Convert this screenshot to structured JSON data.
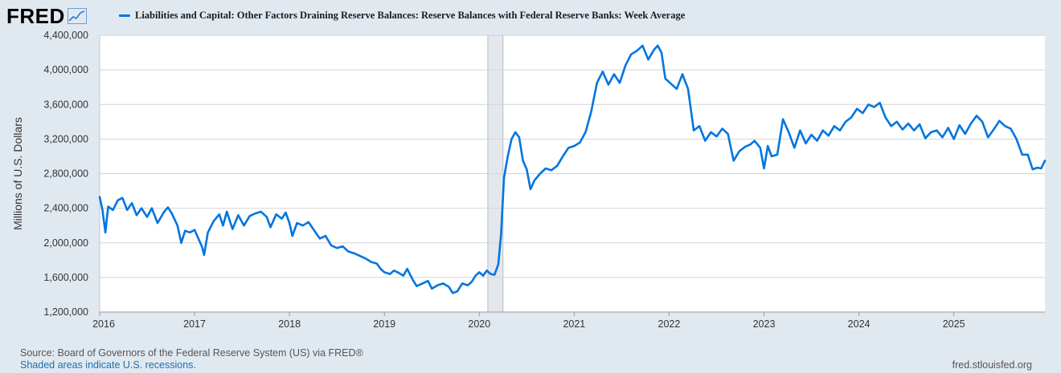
{
  "header": {
    "logo_text": "FRED",
    "logo_icon": "trend-line-icon"
  },
  "colors": {
    "series": "#0075e0",
    "background": "#e1e9f0",
    "plot_background": "#ffffff",
    "recession_shade": "#e4e8ec",
    "gridline": "#d4d4d4"
  },
  "footer": {
    "source": "Source: Board of Governors of the Federal Reserve System (US) via FRED®",
    "note": "Shaded areas indicate U.S. recessions.",
    "url": "fred.stlouisfed.org"
  },
  "chart_data": {
    "type": "line",
    "title": "",
    "xlabel": "",
    "ylabel": "Millions of U.S. Dollars",
    "ylim": [
      1200000,
      4400000
    ],
    "xlim": [
      2016.0,
      2025.96
    ],
    "y_ticks": [
      1200000,
      1600000,
      2000000,
      2400000,
      2800000,
      3200000,
      3600000,
      4000000,
      4400000
    ],
    "y_tick_labels": [
      "1,200,000",
      "1,600,000",
      "2,000,000",
      "2,400,000",
      "2,800,000",
      "3,200,000",
      "3,600,000",
      "4,000,000",
      "4,400,000"
    ],
    "x_ticks": [
      2016,
      2017,
      2018,
      2019,
      2020,
      2021,
      2022,
      2023,
      2024,
      2025
    ],
    "x_tick_labels": [
      "2016",
      "2017",
      "2018",
      "2019",
      "2020",
      "2021",
      "2022",
      "2023",
      "2024",
      "2025"
    ],
    "grid": "horizontal",
    "legend_position": "top-left",
    "recessions": [
      {
        "start": 2020.09,
        "end": 2020.25
      }
    ],
    "series": [
      {
        "name": "Liabilities and Capital: Other Factors Draining Reserve Balances: Reserve Balances with Federal Reserve Banks: Week Average",
        "points": [
          [
            2016.0,
            2530000
          ],
          [
            2016.03,
            2380000
          ],
          [
            2016.06,
            2120000
          ],
          [
            2016.09,
            2420000
          ],
          [
            2016.14,
            2380000
          ],
          [
            2016.19,
            2490000
          ],
          [
            2016.24,
            2520000
          ],
          [
            2016.29,
            2380000
          ],
          [
            2016.34,
            2460000
          ],
          [
            2016.39,
            2320000
          ],
          [
            2016.44,
            2400000
          ],
          [
            2016.5,
            2300000
          ],
          [
            2016.55,
            2400000
          ],
          [
            2016.61,
            2230000
          ],
          [
            2016.68,
            2360000
          ],
          [
            2016.72,
            2410000
          ],
          [
            2016.76,
            2340000
          ],
          [
            2016.82,
            2200000
          ],
          [
            2016.86,
            2000000
          ],
          [
            2016.9,
            2140000
          ],
          [
            2016.95,
            2120000
          ],
          [
            2017.0,
            2150000
          ],
          [
            2017.04,
            2050000
          ],
          [
            2017.08,
            1950000
          ],
          [
            2017.1,
            1860000
          ],
          [
            2017.14,
            2120000
          ],
          [
            2017.2,
            2250000
          ],
          [
            2017.26,
            2330000
          ],
          [
            2017.3,
            2200000
          ],
          [
            2017.34,
            2360000
          ],
          [
            2017.4,
            2160000
          ],
          [
            2017.46,
            2320000
          ],
          [
            2017.52,
            2200000
          ],
          [
            2017.58,
            2310000
          ],
          [
            2017.64,
            2340000
          ],
          [
            2017.7,
            2360000
          ],
          [
            2017.76,
            2300000
          ],
          [
            2017.8,
            2180000
          ],
          [
            2017.86,
            2330000
          ],
          [
            2017.92,
            2280000
          ],
          [
            2017.96,
            2350000
          ],
          [
            2018.0,
            2230000
          ],
          [
            2018.03,
            2080000
          ],
          [
            2018.08,
            2230000
          ],
          [
            2018.14,
            2200000
          ],
          [
            2018.2,
            2240000
          ],
          [
            2018.25,
            2160000
          ],
          [
            2018.32,
            2050000
          ],
          [
            2018.38,
            2080000
          ],
          [
            2018.44,
            1970000
          ],
          [
            2018.5,
            1940000
          ],
          [
            2018.56,
            1960000
          ],
          [
            2018.62,
            1900000
          ],
          [
            2018.68,
            1880000
          ],
          [
            2018.74,
            1850000
          ],
          [
            2018.8,
            1820000
          ],
          [
            2018.86,
            1780000
          ],
          [
            2018.92,
            1760000
          ],
          [
            2018.96,
            1700000
          ],
          [
            2019.0,
            1660000
          ],
          [
            2019.06,
            1640000
          ],
          [
            2019.1,
            1680000
          ],
          [
            2019.14,
            1660000
          ],
          [
            2019.2,
            1620000
          ],
          [
            2019.24,
            1700000
          ],
          [
            2019.3,
            1570000
          ],
          [
            2019.34,
            1500000
          ],
          [
            2019.4,
            1530000
          ],
          [
            2019.46,
            1560000
          ],
          [
            2019.5,
            1470000
          ],
          [
            2019.56,
            1510000
          ],
          [
            2019.62,
            1530000
          ],
          [
            2019.68,
            1490000
          ],
          [
            2019.72,
            1420000
          ],
          [
            2019.77,
            1440000
          ],
          [
            2019.82,
            1530000
          ],
          [
            2019.88,
            1510000
          ],
          [
            2019.92,
            1550000
          ],
          [
            2019.96,
            1620000
          ],
          [
            2020.0,
            1660000
          ],
          [
            2020.04,
            1620000
          ],
          [
            2020.08,
            1680000
          ],
          [
            2020.12,
            1640000
          ],
          [
            2020.16,
            1630000
          ],
          [
            2020.2,
            1750000
          ],
          [
            2020.23,
            2100000
          ],
          [
            2020.26,
            2750000
          ],
          [
            2020.3,
            3000000
          ],
          [
            2020.34,
            3200000
          ],
          [
            2020.38,
            3280000
          ],
          [
            2020.42,
            3220000
          ],
          [
            2020.46,
            2950000
          ],
          [
            2020.5,
            2850000
          ],
          [
            2020.54,
            2620000
          ],
          [
            2020.58,
            2720000
          ],
          [
            2020.64,
            2800000
          ],
          [
            2020.7,
            2860000
          ],
          [
            2020.76,
            2840000
          ],
          [
            2020.82,
            2890000
          ],
          [
            2020.88,
            3000000
          ],
          [
            2020.94,
            3100000
          ],
          [
            2021.0,
            3120000
          ],
          [
            2021.06,
            3160000
          ],
          [
            2021.12,
            3280000
          ],
          [
            2021.18,
            3520000
          ],
          [
            2021.24,
            3850000
          ],
          [
            2021.3,
            3980000
          ],
          [
            2021.36,
            3830000
          ],
          [
            2021.42,
            3950000
          ],
          [
            2021.48,
            3850000
          ],
          [
            2021.54,
            4050000
          ],
          [
            2021.6,
            4180000
          ],
          [
            2021.66,
            4220000
          ],
          [
            2021.72,
            4280000
          ],
          [
            2021.78,
            4120000
          ],
          [
            2021.84,
            4230000
          ],
          [
            2021.88,
            4280000
          ],
          [
            2021.92,
            4200000
          ],
          [
            2021.96,
            3900000
          ],
          [
            2022.02,
            3840000
          ],
          [
            2022.08,
            3780000
          ],
          [
            2022.14,
            3950000
          ],
          [
            2022.2,
            3780000
          ],
          [
            2022.26,
            3300000
          ],
          [
            2022.32,
            3350000
          ],
          [
            2022.38,
            3180000
          ],
          [
            2022.44,
            3280000
          ],
          [
            2022.5,
            3230000
          ],
          [
            2022.56,
            3320000
          ],
          [
            2022.62,
            3260000
          ],
          [
            2022.68,
            2950000
          ],
          [
            2022.74,
            3060000
          ],
          [
            2022.8,
            3110000
          ],
          [
            2022.86,
            3140000
          ],
          [
            2022.9,
            3180000
          ],
          [
            2022.96,
            3100000
          ],
          [
            2023.0,
            2860000
          ],
          [
            2023.04,
            3120000
          ],
          [
            2023.08,
            3000000
          ],
          [
            2023.14,
            3020000
          ],
          [
            2023.2,
            3430000
          ],
          [
            2023.26,
            3280000
          ],
          [
            2023.32,
            3100000
          ],
          [
            2023.38,
            3300000
          ],
          [
            2023.44,
            3150000
          ],
          [
            2023.5,
            3250000
          ],
          [
            2023.56,
            3180000
          ],
          [
            2023.62,
            3300000
          ],
          [
            2023.68,
            3240000
          ],
          [
            2023.74,
            3350000
          ],
          [
            2023.8,
            3300000
          ],
          [
            2023.86,
            3400000
          ],
          [
            2023.92,
            3450000
          ],
          [
            2023.98,
            3550000
          ],
          [
            2024.04,
            3500000
          ],
          [
            2024.1,
            3600000
          ],
          [
            2024.16,
            3570000
          ],
          [
            2024.22,
            3620000
          ],
          [
            2024.28,
            3450000
          ],
          [
            2024.34,
            3350000
          ],
          [
            2024.4,
            3400000
          ],
          [
            2024.46,
            3310000
          ],
          [
            2024.52,
            3380000
          ],
          [
            2024.58,
            3300000
          ],
          [
            2024.64,
            3370000
          ],
          [
            2024.7,
            3210000
          ],
          [
            2024.76,
            3280000
          ],
          [
            2024.82,
            3300000
          ],
          [
            2024.88,
            3220000
          ],
          [
            2024.94,
            3330000
          ],
          [
            2025.0,
            3200000
          ],
          [
            2025.06,
            3360000
          ],
          [
            2025.12,
            3260000
          ],
          [
            2025.18,
            3380000
          ],
          [
            2025.24,
            3470000
          ],
          [
            2025.3,
            3400000
          ],
          [
            2025.36,
            3220000
          ],
          [
            2025.42,
            3310000
          ],
          [
            2025.48,
            3410000
          ],
          [
            2025.54,
            3350000
          ],
          [
            2025.6,
            3320000
          ],
          [
            2025.66,
            3200000
          ],
          [
            2025.72,
            3020000
          ],
          [
            2025.78,
            3020000
          ],
          [
            2025.83,
            2850000
          ],
          [
            2025.88,
            2870000
          ],
          [
            2025.92,
            2860000
          ],
          [
            2025.96,
            2950000
          ]
        ]
      }
    ]
  }
}
